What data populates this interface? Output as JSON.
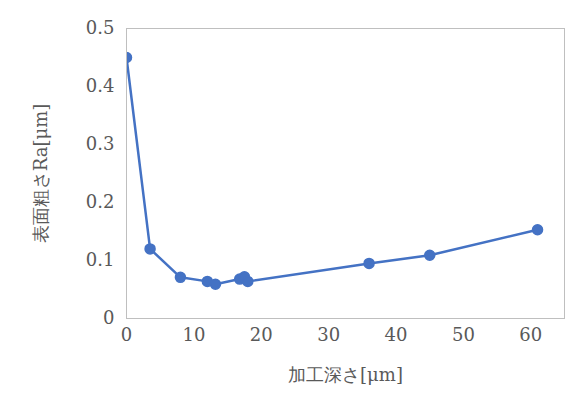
{
  "chart_data": {
    "type": "line",
    "x_label": "加工深さ[μm]",
    "y_label": "表面粗さRa[μm]",
    "x": [
      0,
      3.5,
      8,
      12,
      13.2,
      16.8,
      17.5,
      18,
      36,
      45,
      61
    ],
    "values": [
      0.45,
      0.12,
      0.071,
      0.064,
      0.059,
      0.068,
      0.072,
      0.064,
      0.095,
      0.109,
      0.153
    ],
    "color": "#4472c4",
    "marker": "circle",
    "xlim": [
      0,
      65
    ],
    "xticks": [
      0,
      10,
      20,
      30,
      40,
      50,
      60
    ],
    "ylim": [
      0,
      0.5
    ],
    "yticks": [
      0,
      0.1,
      0.2,
      0.3,
      0.4,
      0.5
    ],
    "grid": false
  }
}
